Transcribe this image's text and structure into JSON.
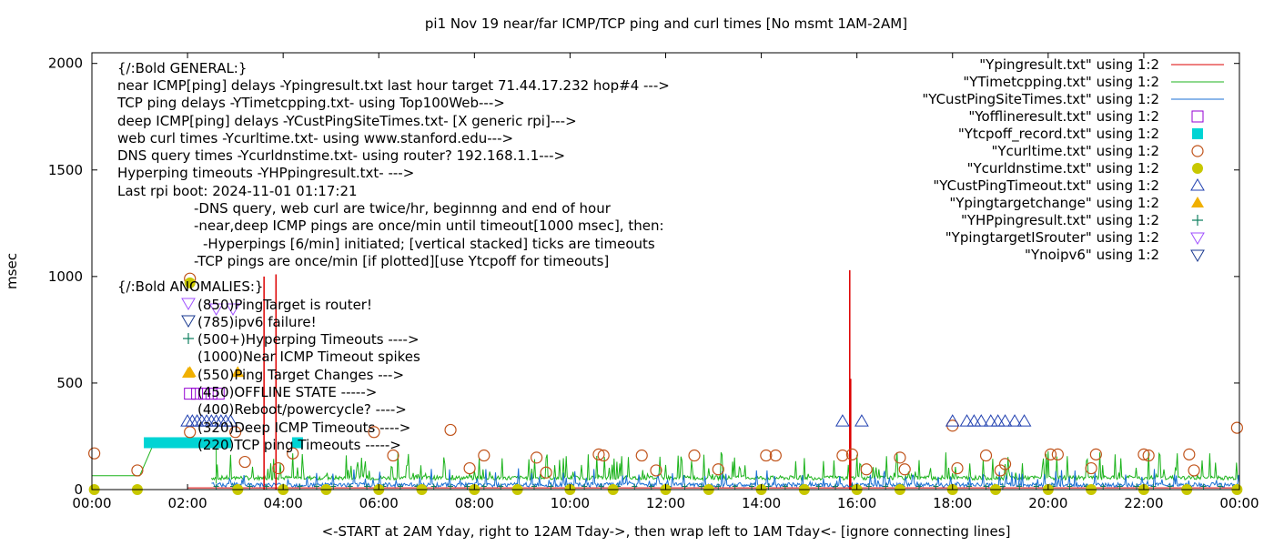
{
  "chart_data": {
    "type": "line",
    "title": "pi1 Nov 19  near/far ICMP/TCP ping and curl times [No msmt 1AM-2AM]",
    "xlabel": "<-START at 2AM Yday, right to 12AM Tday->, then wrap left to 1AM Tday<- [ignore connecting lines]",
    "ylabel": "msec",
    "xlim": [
      0,
      24
    ],
    "ylim": [
      0,
      2050
    ],
    "x_ticks": [
      "00:00",
      "02:00",
      "04:00",
      "06:00",
      "08:00",
      "10:00",
      "12:00",
      "14:00",
      "16:00",
      "18:00",
      "20:00",
      "22:00",
      "00:00"
    ],
    "y_ticks": [
      "0",
      "500",
      "1000",
      "1500",
      "2000"
    ],
    "legend_position": "top-right",
    "legend": [
      {
        "label": "\"Ypingresult.txt\" using 1:2",
        "symbol": "line",
        "color": "#dd0000"
      },
      {
        "label": "\"YTimetcpping.txt\" using 1:2",
        "symbol": "line",
        "color": "#1cb31c"
      },
      {
        "label": "\"YCustPingSiteTimes.txt\" using 1:2",
        "symbol": "line",
        "color": "#1a6fd4"
      },
      {
        "label": "\"Yofflineresult.txt\" using 1:2",
        "symbol": "open-square",
        "color": "#9400d3"
      },
      {
        "label": "\"Ytcpoff_record.txt\" using 1:2",
        "symbol": "filled-square",
        "color": "#00d4d4"
      },
      {
        "label": "\"Ycurltime.txt\" using 1:2",
        "symbol": "open-circle",
        "color": "#c0531a"
      },
      {
        "label": "\"Ycurldnstime.txt\" using 1:2",
        "symbol": "filled-circle",
        "color": "#c8c800"
      },
      {
        "label": "\"YCustPingTimeout.txt\" using 1:2",
        "symbol": "open-triangle-up",
        "color": "#2040b0"
      },
      {
        "label": "\"Ypingtargetchange\" using 1:2",
        "symbol": "filled-triangle-up",
        "color": "#f0b000"
      },
      {
        "label": "\"YHPpingresult.txt\" using 1:2",
        "symbol": "plus",
        "color": "#108060"
      },
      {
        "label": "\"YpingtargetISrouter\" using 1:2",
        "symbol": "open-triangle-down",
        "color": "#a050ff"
      },
      {
        "label": "\"Ynoipv6\" using 1:2",
        "symbol": "open-triangle-down",
        "color": "#1a3a90"
      }
    ],
    "annotations": [
      "{/:Bold GENERAL:}",
      "near ICMP[ping] delays -Ypingresult.txt last hour target 71.44.17.232 hop#4 --->",
      "TCP ping delays -YTimetcpping.txt- using Top100Web--->",
      "deep ICMP[ping] delays -YCustPingSiteTimes.txt- [X generic rpi]--->",
      "web curl times -Ycurltime.txt- using www.stanford.edu--->",
      "DNS query times -Ycurldnstime.txt- using router? 192.168.1.1--->",
      "Hyperping timeouts -YHPpingresult.txt- --->",
      "Last rpi boot: 2024-11-01 01:17:21",
      "-DNS query, web curl are twice/hr, beginnng and end of hour",
      "-near,deep ICMP pings are once/min until timeout[1000 msec], then:",
      "-Hyperpings [6/min] initiated; [vertical stacked] ticks are timeouts",
      "-TCP pings are once/min [if plotted][use Ytcpoff for timeouts]",
      "{/:Bold ANOMALIES:}",
      "(850)PingTarget is router!",
      "(785)ipv6 failure!",
      "(500+)Hyperping Timeouts ---->",
      "(1000)Near ICMP Timeout spikes",
      "(550)Ping Target Changes --->",
      "(450)OFFLINE STATE ----->",
      "(400)Reboot/powercycle? ---->",
      "(320)Deep ICMP Timeouts ---->",
      "(220)TCP ping Timeouts ----->"
    ],
    "series": [
      {
        "name": "\"Ypingresult.txt\" using 1:2",
        "spikes": [
          {
            "x": 3.6,
            "y": 1000
          },
          {
            "x": 3.85,
            "y": 1010
          },
          {
            "x": 15.85,
            "y": 1030
          },
          {
            "x": 15.87,
            "y": 520
          }
        ],
        "baseline": 8
      },
      {
        "name": "\"YTimetcpping.txt\" using 1:2",
        "baseline": 55,
        "noise": 60
      },
      {
        "name": "\"YCustPingSiteTimes.txt\" using 1:2",
        "baseline": 22,
        "noise": 50
      },
      {
        "name": "\"Ycurltime.txt\" using 1:2",
        "points": [
          [
            0.05,
            170
          ],
          [
            0.95,
            90
          ],
          [
            2.05,
            990
          ],
          [
            2.05,
            270
          ],
          [
            3.0,
            270
          ],
          [
            3.2,
            130
          ],
          [
            3.9,
            100
          ],
          [
            4.2,
            170
          ],
          [
            5.9,
            270
          ],
          [
            6.3,
            160
          ],
          [
            7.5,
            280
          ],
          [
            7.9,
            100
          ],
          [
            8.2,
            160
          ],
          [
            9.3,
            150
          ],
          [
            9.5,
            80
          ],
          [
            10.6,
            165
          ],
          [
            10.7,
            160
          ],
          [
            11.5,
            160
          ],
          [
            11.8,
            90
          ],
          [
            12.6,
            160
          ],
          [
            13.1,
            95
          ],
          [
            14.1,
            160
          ],
          [
            14.3,
            160
          ],
          [
            15.7,
            160
          ],
          [
            15.9,
            165
          ],
          [
            16.2,
            95
          ],
          [
            16.9,
            150
          ],
          [
            17.0,
            95
          ],
          [
            18.0,
            300
          ],
          [
            18.1,
            100
          ],
          [
            18.7,
            160
          ],
          [
            19.0,
            90
          ],
          [
            19.1,
            120
          ],
          [
            20.05,
            165
          ],
          [
            20.2,
            165
          ],
          [
            20.9,
            100
          ],
          [
            21.0,
            165
          ],
          [
            22.0,
            165
          ],
          [
            22.1,
            160
          ],
          [
            22.95,
            165
          ],
          [
            23.05,
            90
          ],
          [
            23.95,
            290
          ]
        ]
      },
      {
        "name": "\"Ycurldnstime.txt\" using 1:2",
        "points": [
          [
            0.05,
            0
          ],
          [
            0.95,
            0
          ],
          [
            2.05,
            970
          ],
          [
            3.05,
            0
          ],
          [
            4.0,
            0
          ],
          [
            4.9,
            0
          ],
          [
            6.0,
            0
          ],
          [
            6.9,
            0
          ],
          [
            8.0,
            0
          ],
          [
            8.9,
            0
          ],
          [
            10.0,
            0
          ],
          [
            10.9,
            0
          ],
          [
            12.0,
            0
          ],
          [
            12.9,
            0
          ],
          [
            14.0,
            0
          ],
          [
            14.9,
            0
          ],
          [
            16.0,
            0
          ],
          [
            16.9,
            0
          ],
          [
            18.0,
            0
          ],
          [
            18.9,
            0
          ],
          [
            20.0,
            0
          ],
          [
            20.9,
            0
          ],
          [
            22.0,
            0
          ],
          [
            22.9,
            0
          ],
          [
            23.95,
            0
          ]
        ]
      },
      {
        "name": "\"YCustPingTimeout.txt\" using 1:2",
        "points": [
          [
            2.0,
            320
          ],
          [
            2.1,
            320
          ],
          [
            2.2,
            320
          ],
          [
            2.3,
            320
          ],
          [
            2.4,
            320
          ],
          [
            2.5,
            320
          ],
          [
            2.6,
            320
          ],
          [
            2.7,
            320
          ],
          [
            2.8,
            320
          ],
          [
            2.9,
            320
          ],
          [
            15.7,
            320
          ],
          [
            16.1,
            320
          ],
          [
            18.0,
            320
          ],
          [
            18.3,
            320
          ],
          [
            18.45,
            320
          ],
          [
            18.6,
            320
          ],
          [
            18.8,
            320
          ],
          [
            18.95,
            320
          ],
          [
            19.1,
            320
          ],
          [
            19.3,
            320
          ],
          [
            19.5,
            320
          ]
        ]
      },
      {
        "name": "\"Ytcpoff_record.txt\" using 1:2",
        "points": [
          [
            1.2,
            220
          ],
          [
            1.4,
            220
          ],
          [
            1.6,
            220
          ],
          [
            1.8,
            220
          ],
          [
            2.0,
            220
          ],
          [
            2.2,
            220
          ],
          [
            2.4,
            220
          ],
          [
            2.6,
            220
          ],
          [
            2.8,
            220
          ],
          [
            4.3,
            220
          ]
        ]
      },
      {
        "name": "\"Yofflineresult.txt\" using 1:2",
        "points": [
          [
            2.05,
            450
          ],
          [
            2.2,
            450
          ],
          [
            2.35,
            450
          ],
          [
            2.5,
            450
          ],
          [
            2.65,
            450
          ]
        ]
      },
      {
        "name": "\"Ypingtargetchange\" using 1:2",
        "points": [
          [
            2.05,
            550
          ],
          [
            3.05,
            550
          ]
        ]
      },
      {
        "name": "\"YpingtargetISrouter\" using 1:2",
        "points": [
          [
            2.6,
            850
          ],
          [
            2.95,
            850
          ]
        ]
      }
    ]
  }
}
